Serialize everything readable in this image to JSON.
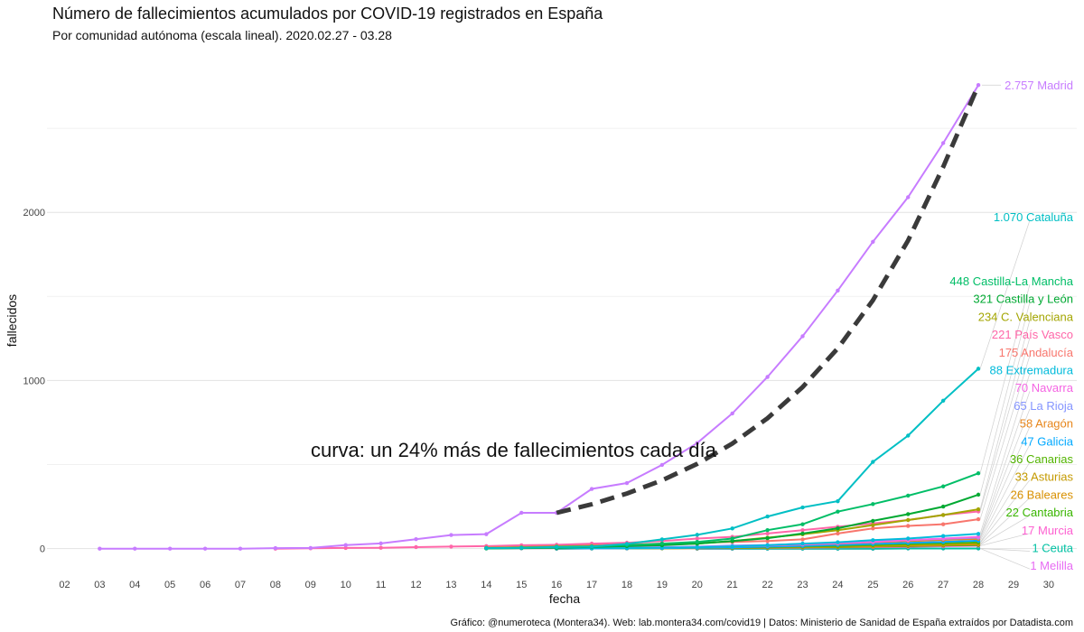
{
  "header": {
    "title": "Número de fallecimientos acumulados por COVID-19 registrados en España",
    "subtitle": "Por comunidad autónoma (escala lineal). 2020.02.27 - 03.28"
  },
  "caption": "Gráfico: @numeroteca (Montera34). Web: lab.montera34.com/covid19 | Datos: Ministerio de Sanidad de España extraídos por Datadista.com",
  "chart_data": {
    "type": "line",
    "xlabel": "fecha",
    "ylabel": "fallecidos",
    "x": [
      2,
      3,
      4,
      5,
      6,
      7,
      8,
      9,
      10,
      11,
      12,
      13,
      14,
      15,
      16,
      17,
      18,
      19,
      20,
      21,
      22,
      23,
      24,
      25,
      26,
      27,
      28,
      29,
      30
    ],
    "x_tick_labels": [
      "02",
      "03",
      "04",
      "05",
      "06",
      "07",
      "08",
      "09",
      "10",
      "11",
      "12",
      "13",
      "14",
      "15",
      "16",
      "17",
      "18",
      "19",
      "20",
      "21",
      "22",
      "23",
      "24",
      "25",
      "26",
      "27",
      "28",
      "29",
      "30"
    ],
    "xlim": [
      1.5,
      30.8
    ],
    "ylim": [
      -120,
      2930
    ],
    "y_ticks": [
      0,
      1000,
      2000
    ],
    "y_minor_ticks": [
      500,
      1500,
      2500
    ],
    "grid": true,
    "legend": "none",
    "annotation": "curva: un 24% más de fallecimientos cada día",
    "reference_curve": {
      "style": "dashed",
      "color": "#3a3a3a",
      "x": [
        16,
        17,
        18,
        19,
        20,
        21,
        22,
        23,
        24,
        25,
        26,
        27,
        28
      ],
      "values": [
        213,
        264,
        328,
        406,
        504,
        625,
        775,
        961,
        1191,
        1477,
        1832,
        2271,
        2757
      ]
    },
    "series": [
      {
        "name": "Madrid",
        "label": "2.757 Madrid",
        "color": "#c77cff",
        "x": [
          3,
          4,
          5,
          6,
          7,
          8,
          9,
          10,
          11,
          12,
          13,
          14,
          15,
          16,
          17,
          18,
          19,
          20,
          21,
          22,
          23,
          24,
          25,
          26,
          27,
          28
        ],
        "values": [
          0,
          0,
          0,
          0,
          0,
          3,
          4,
          21,
          31,
          56,
          81,
          86,
          213,
          213,
          355,
          390,
          498,
          628,
          804,
          1021,
          1263,
          1535,
          1825,
          2090,
          2412,
          2757
        ]
      },
      {
        "name": "Cataluña",
        "label": "1.070 Cataluña",
        "color": "#00bfc4",
        "x": [
          14,
          15,
          16,
          17,
          18,
          19,
          20,
          21,
          22,
          23,
          24,
          25,
          26,
          27,
          28
        ],
        "values": [
          3,
          5,
          10,
          12,
          28,
          55,
          82,
          120,
          191,
          245,
          282,
          516,
          672,
          880,
          1070
        ]
      },
      {
        "name": "Castilla-La Mancha",
        "label": "448 Castilla-La Mancha",
        "color": "#00be67",
        "x": [
          14,
          15,
          16,
          17,
          18,
          19,
          20,
          21,
          22,
          23,
          24,
          25,
          26,
          27,
          28
        ],
        "values": [
          2,
          4,
          8,
          12,
          20,
          30,
          40,
          60,
          110,
          145,
          220,
          265,
          315,
          370,
          448
        ]
      },
      {
        "name": "Castilla y León",
        "label": "321 Castilla y León",
        "color": "#00a932",
        "x": [
          14,
          15,
          16,
          17,
          18,
          19,
          20,
          21,
          22,
          23,
          24,
          25,
          26,
          27,
          28
        ],
        "values": [
          1,
          3,
          5,
          10,
          15,
          20,
          30,
          45,
          62,
          90,
          121,
          165,
          205,
          250,
          321
        ]
      },
      {
        "name": "C. Valenciana",
        "label": "234 C. Valenciana",
        "color": "#a3a500",
        "x": [
          14,
          15,
          16,
          17,
          18,
          19,
          20,
          21,
          22,
          23,
          24,
          25,
          26,
          27,
          28
        ],
        "values": [
          5,
          8,
          13,
          15,
          20,
          25,
          30,
          45,
          65,
          85,
          110,
          140,
          170,
          200,
          234
        ]
      },
      {
        "name": "País Vasco",
        "label": "221 País Vasco",
        "color": "#ff66a8",
        "x": [
          8,
          9,
          10,
          11,
          12,
          13,
          14,
          15,
          16,
          17,
          18,
          19,
          20,
          21,
          22,
          23,
          24,
          25,
          26,
          27,
          28
        ],
        "values": [
          0,
          2,
          4,
          5,
          9,
          12,
          15,
          20,
          23,
          30,
          35,
          45,
          60,
          70,
          90,
          110,
          130,
          150,
          170,
          200,
          221
        ]
      },
      {
        "name": "Andalucía",
        "label": "175 Andalucía",
        "color": "#f8766d",
        "x": [
          14,
          15,
          16,
          17,
          18,
          19,
          20,
          21,
          22,
          23,
          24,
          25,
          26,
          27,
          28
        ],
        "values": [
          5,
          10,
          15,
          20,
          25,
          30,
          35,
          40,
          45,
          55,
          90,
          120,
          135,
          145,
          175
        ]
      },
      {
        "name": "Extremadura",
        "label": "88 Extremadura",
        "color": "#00bbdb",
        "x": [
          16,
          17,
          18,
          19,
          20,
          21,
          22,
          23,
          24,
          25,
          26,
          27,
          28
        ],
        "values": [
          1,
          2,
          3,
          5,
          8,
          12,
          20,
          30,
          38,
          50,
          60,
          75,
          88
        ]
      },
      {
        "name": "Navarra",
        "label": "70 Navarra",
        "color": "#f564e3",
        "x": [
          16,
          17,
          18,
          19,
          20,
          21,
          22,
          23,
          24,
          25,
          26,
          27,
          28
        ],
        "values": [
          1,
          2,
          3,
          5,
          8,
          12,
          18,
          25,
          32,
          40,
          50,
          60,
          70
        ]
      },
      {
        "name": "La Rioja",
        "label": "65 La Rioja",
        "color": "#8494ff",
        "x": [
          14,
          15,
          16,
          17,
          18,
          19,
          20,
          21,
          22,
          23,
          24,
          25,
          26,
          27,
          28
        ],
        "values": [
          1,
          2,
          3,
          4,
          6,
          9,
          12,
          18,
          22,
          28,
          35,
          42,
          50,
          58,
          65
        ]
      },
      {
        "name": "Aragón",
        "label": "58 Aragón",
        "color": "#e7861b",
        "x": [
          14,
          15,
          16,
          17,
          18,
          19,
          20,
          21,
          22,
          23,
          24,
          25,
          26,
          27,
          28
        ],
        "values": [
          1,
          2,
          3,
          4,
          5,
          7,
          10,
          14,
          18,
          24,
          30,
          38,
          45,
          52,
          58
        ]
      },
      {
        "name": "Galicia",
        "label": "47 Galicia",
        "color": "#00a9ff",
        "x": [
          16,
          17,
          18,
          19,
          20,
          21,
          22,
          23,
          24,
          25,
          26,
          27,
          28
        ],
        "values": [
          1,
          1,
          2,
          3,
          5,
          8,
          12,
          16,
          22,
          28,
          34,
          40,
          47
        ]
      },
      {
        "name": "Canarias",
        "label": "36 Canarias",
        "color": "#53b400",
        "x": [
          16,
          17,
          18,
          19,
          20,
          21,
          22,
          23,
          24,
          25,
          26,
          27,
          28
        ],
        "values": [
          1,
          1,
          2,
          3,
          4,
          6,
          9,
          12,
          16,
          21,
          26,
          31,
          36
        ]
      },
      {
        "name": "Asturias",
        "label": "33 Asturias",
        "color": "#c49a00",
        "x": [
          16,
          17,
          18,
          19,
          20,
          21,
          22,
          23,
          24,
          25,
          26,
          27,
          28
        ],
        "values": [
          1,
          1,
          2,
          3,
          4,
          5,
          8,
          11,
          14,
          19,
          24,
          28,
          33
        ]
      },
      {
        "name": "Baleares",
        "label": "26 Baleares",
        "color": "#d89000",
        "x": [
          16,
          17,
          18,
          19,
          20,
          21,
          22,
          23,
          24,
          25,
          26,
          27,
          28
        ],
        "values": [
          1,
          1,
          2,
          2,
          3,
          4,
          6,
          8,
          11,
          14,
          18,
          22,
          26
        ]
      },
      {
        "name": "Cantabria",
        "label": "22 Cantabria",
        "color": "#39b600",
        "x": [
          16,
          17,
          18,
          19,
          20,
          21,
          22,
          23,
          24,
          25,
          26,
          27,
          28
        ],
        "values": [
          0,
          1,
          1,
          2,
          3,
          4,
          5,
          7,
          9,
          12,
          15,
          19,
          22
        ]
      },
      {
        "name": "Murcia",
        "label": "17 Murcia",
        "color": "#fd61d1",
        "x": [
          16,
          17,
          18,
          19,
          20,
          21,
          22,
          23,
          24,
          25,
          26,
          27,
          28
        ],
        "values": [
          0,
          1,
          1,
          2,
          2,
          3,
          4,
          5,
          7,
          9,
          11,
          14,
          17
        ]
      },
      {
        "name": "Ceuta",
        "label": "1 Ceuta",
        "color": "#00c1a3",
        "x": [
          20,
          21,
          22,
          23,
          24,
          25,
          26,
          27,
          28
        ],
        "values": [
          0,
          0,
          0,
          0,
          0,
          0,
          1,
          1,
          1
        ]
      },
      {
        "name": "Melilla",
        "label": "1 Melilla",
        "color": "#e76bf3",
        "x": [
          20,
          21,
          22,
          23,
          24,
          25,
          26,
          27,
          28
        ],
        "values": [
          0,
          0,
          0,
          0,
          0,
          0,
          1,
          1,
          1
        ]
      }
    ]
  }
}
